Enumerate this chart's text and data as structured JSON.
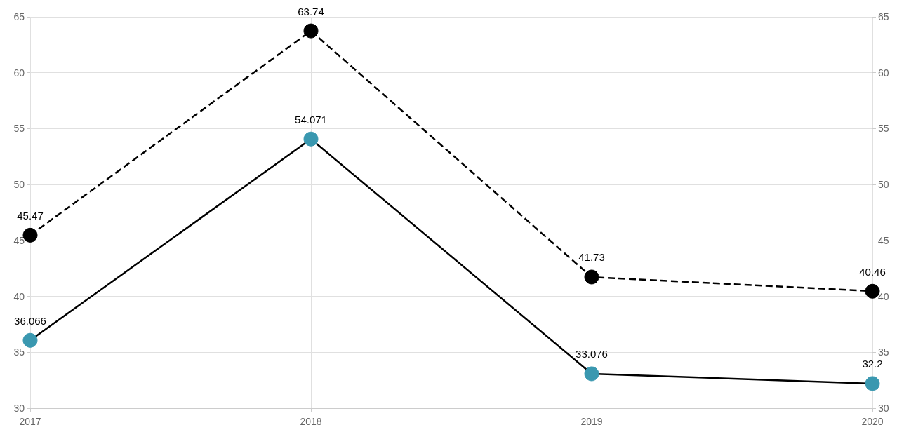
{
  "chart_data": {
    "type": "line",
    "categories": [
      "2017",
      "2018",
      "2019",
      "2020"
    ],
    "series": [
      {
        "color": "#000000",
        "line_style": "dashed",
        "values": [
          45.47,
          63.74,
          41.73,
          40.46
        ]
      },
      {
        "color": "#3a98b0",
        "line_style": "solid",
        "values": [
          36.066,
          54.071,
          33.076,
          32.2
        ]
      }
    ],
    "ylim": [
      30,
      65
    ],
    "yticks": [
      30,
      35,
      40,
      45,
      50,
      55,
      60,
      65
    ],
    "y2lim": [
      30,
      65
    ],
    "y2ticks": [
      30,
      35,
      40,
      45,
      50,
      55,
      60,
      65
    ],
    "grid": true,
    "marker": "circle",
    "data_labels": true
  }
}
